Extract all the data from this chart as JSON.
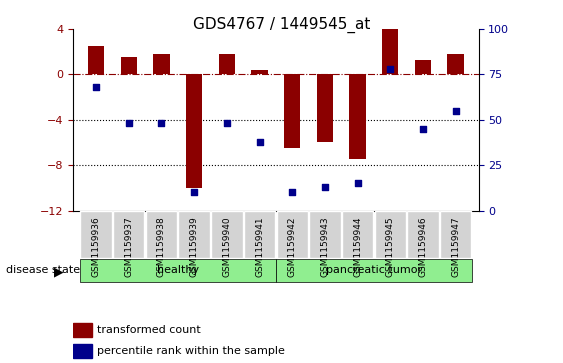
{
  "title": "GDS4767 / 1449545_at",
  "samples": [
    "GSM1159936",
    "GSM1159937",
    "GSM1159938",
    "GSM1159939",
    "GSM1159940",
    "GSM1159941",
    "GSM1159942",
    "GSM1159943",
    "GSM1159944",
    "GSM1159945",
    "GSM1159946",
    "GSM1159947"
  ],
  "transformed_count": [
    2.5,
    1.5,
    1.8,
    -10.0,
    1.8,
    0.4,
    -6.5,
    -6.0,
    -7.5,
    4.0,
    1.3,
    1.8
  ],
  "percentile_rank": [
    68,
    48,
    48,
    10,
    48,
    38,
    10,
    13,
    15,
    78,
    45,
    55
  ],
  "groups": [
    {
      "label": "healthy",
      "start": 0,
      "end": 6,
      "color": "#90EE90"
    },
    {
      "label": "pancreatic tumor",
      "start": 6,
      "end": 12,
      "color": "#90EE90"
    }
  ],
  "bar_color": "#8B0000",
  "dot_color": "#00008B",
  "ylim_left": [
    -12,
    4
  ],
  "ylim_right": [
    0,
    100
  ],
  "yticks_left": [
    4,
    0,
    -4,
    -8,
    -12
  ],
  "yticks_right": [
    100,
    75,
    50,
    25,
    0
  ],
  "hline_y": 0,
  "dotted_lines": [
    -4,
    -8
  ],
  "background_color": "#ffffff",
  "bar_width": 0.5
}
